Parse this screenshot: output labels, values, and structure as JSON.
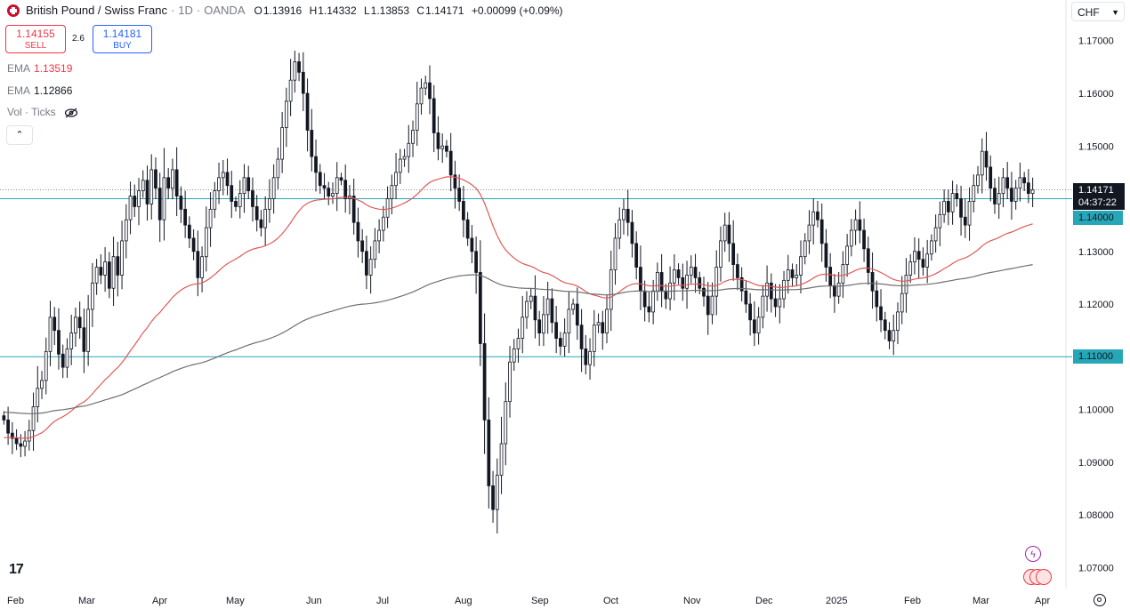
{
  "header": {
    "title": "British Pound / Swiss Franc",
    "interval": "1D",
    "exchange": "OANDA",
    "o_label": "O",
    "o_value": "1.13916",
    "h_label": "H",
    "h_value": "1.14332",
    "l_label": "L",
    "l_value": "1.13853",
    "c_label": "C",
    "c_value": "1.14171",
    "change": "+0.00099 (+0.09%)"
  },
  "trade": {
    "sell_price": "1.14155",
    "sell_label": "SELL",
    "spread": "2.6",
    "buy_price": "1.14181",
    "buy_label": "BUY"
  },
  "indicators": [
    {
      "label": "EMA",
      "value": "1.13519"
    },
    {
      "label": "EMA",
      "value": "1.12866"
    },
    {
      "label": "Vol · Ticks"
    }
  ],
  "currency_selector": "CHF",
  "price_labels": {
    "last_price": "1.14171",
    "countdown": "04:37:22",
    "level_upper": "1.14000",
    "level_lower": "1.11000"
  },
  "colors": {
    "bull": "#ffffff",
    "bear": "#131722",
    "ema_fast": "#e05a5a",
    "ema_slow": "#6f6f6f",
    "hline": "#26a6b6",
    "last_price_bg": "#131722"
  },
  "chart_data": {
    "type": "candlestick",
    "symbol": "GBPCHF",
    "y_ticks": [
      "1.17000",
      "1.16000",
      "1.15000",
      "1.14000",
      "1.13000",
      "1.12000",
      "1.11000",
      "1.10000",
      "1.09000",
      "1.08000",
      "1.07000"
    ],
    "x_ticks": [
      "Feb",
      "Mar",
      "Apr",
      "May",
      "Jun",
      "Jul",
      "Aug",
      "Sep",
      "Oct",
      "Nov",
      "Dec",
      "2025",
      "Feb",
      "Mar",
      "Apr"
    ],
    "ylim": [
      1.066,
      1.1735
    ],
    "horizontal_levels": [
      1.14,
      1.11
    ],
    "last_close": 1.14171,
    "ema_fast_last": 1.13519,
    "ema_slow_last": 1.12866,
    "closes": [
      1.098,
      1.0955,
      1.0945,
      1.0935,
      1.093,
      1.094,
      1.096,
      1.1005,
      1.104,
      1.1055,
      1.111,
      1.1175,
      1.115,
      1.1105,
      1.108,
      1.1115,
      1.1145,
      1.1175,
      1.1155,
      1.111,
      1.119,
      1.124,
      1.127,
      1.1255,
      1.128,
      1.123,
      1.129,
      1.1255,
      1.132,
      1.136,
      1.1405,
      1.1385,
      1.1415,
      1.1435,
      1.139,
      1.1455,
      1.142,
      1.136,
      1.144,
      1.142,
      1.1455,
      1.1405,
      1.138,
      1.135,
      1.1325,
      1.13,
      1.125,
      1.129,
      1.1345,
      1.138,
      1.1415,
      1.144,
      1.145,
      1.1425,
      1.1395,
      1.1385,
      1.141,
      1.144,
      1.1415,
      1.1385,
      1.136,
      1.1345,
      1.138,
      1.14,
      1.144,
      1.1475,
      1.1535,
      1.1585,
      1.1625,
      1.166,
      1.164,
      1.16,
      1.153,
      1.148,
      1.145,
      1.1425,
      1.142,
      1.1405,
      1.141,
      1.144,
      1.1435,
      1.14,
      1.1405,
      1.1355,
      1.132,
      1.13,
      1.1255,
      1.1285,
      1.132,
      1.134,
      1.1365,
      1.14,
      1.1425,
      1.145,
      1.1475,
      1.148,
      1.1505,
      1.153,
      1.158,
      1.161,
      1.162,
      1.159,
      1.1525,
      1.1495,
      1.15,
      1.149,
      1.1445,
      1.142,
      1.1395,
      1.136,
      1.1325,
      1.13,
      1.126,
      1.1125,
      1.098,
      1.0855,
      1.081,
      1.0875,
      1.0935,
      1.1015,
      1.109,
      1.1115,
      1.1135,
      1.1175,
      1.1205,
      1.1215,
      1.117,
      1.1145,
      1.118,
      1.121,
      1.1165,
      1.1135,
      1.112,
      1.1145,
      1.119,
      1.12,
      1.116,
      1.1115,
      1.1085,
      1.111,
      1.116,
      1.1165,
      1.1145,
      1.119,
      1.1265,
      1.1325,
      1.136,
      1.138,
      1.1355,
      1.1315,
      1.127,
      1.1225,
      1.1195,
      1.1185,
      1.1225,
      1.126,
      1.1225,
      1.121,
      1.124,
      1.1265,
      1.125,
      1.123,
      1.1255,
      1.127,
      1.125,
      1.123,
      1.1215,
      1.118,
      1.1215,
      1.127,
      1.132,
      1.135,
      1.1315,
      1.1275,
      1.125,
      1.1225,
      1.12,
      1.117,
      1.1145,
      1.1175,
      1.1215,
      1.124,
      1.121,
      1.1195,
      1.121,
      1.1245,
      1.1265,
      1.125,
      1.1255,
      1.129,
      1.132,
      1.135,
      1.1375,
      1.136,
      1.1315,
      1.127,
      1.1235,
      1.1215,
      1.124,
      1.1275,
      1.131,
      1.134,
      1.136,
      1.134,
      1.1305,
      1.126,
      1.1225,
      1.1195,
      1.117,
      1.115,
      1.113,
      1.115,
      1.1185,
      1.122,
      1.1255,
      1.128,
      1.13,
      1.1285,
      1.127,
      1.1295,
      1.132,
      1.1345,
      1.137,
      1.1395,
      1.1375,
      1.141,
      1.14,
      1.1365,
      1.135,
      1.1395,
      1.1425,
      1.1445,
      1.149,
      1.146,
      1.142,
      1.139,
      1.141,
      1.144,
      1.142,
      1.1395,
      1.142,
      1.144,
      1.143,
      1.141,
      1.1417
    ]
  }
}
